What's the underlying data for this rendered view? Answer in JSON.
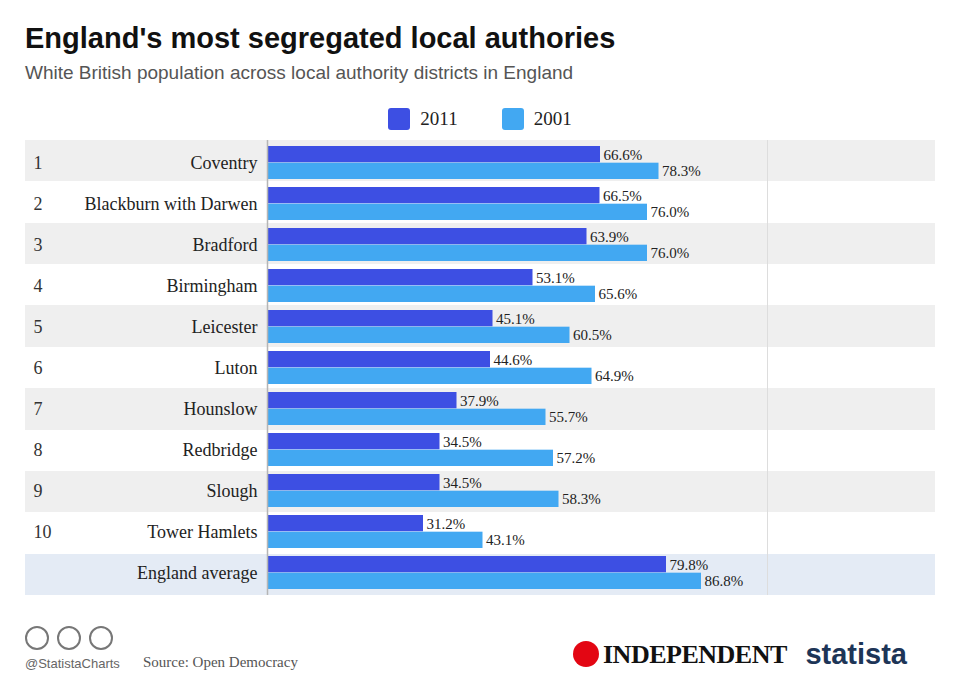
{
  "chart_data": {
    "type": "bar",
    "title": "England's most segregated local authories",
    "subtitle": "White British population across local authority districts in England",
    "orientation": "horizontal",
    "data_labels": true,
    "tick_labels": "y",
    "grid": false,
    "legend": "top",
    "categories": [
      "Coventry",
      "Blackburn with Darwen",
      "Bradford",
      "Birmingham",
      "Leicester",
      "Luton",
      "Hounslow",
      "Redbridge",
      "Slough",
      "Tower Hamlets",
      "England average"
    ],
    "ranks": [
      1,
      2,
      3,
      4,
      5,
      6,
      7,
      8,
      9,
      10,
      null
    ],
    "xlim": [
      0,
      100
    ],
    "series": [
      {
        "name": "2011",
        "color": "#3d4fe3",
        "values": [
          66.6,
          66.5,
          63.9,
          53.1,
          45.1,
          44.6,
          37.9,
          34.5,
          34.5,
          31.2,
          79.8
        ],
        "value_labels": [
          "66.6%",
          "66.5%",
          "63.9%",
          "53.1%",
          "45.1%",
          "44.6%",
          "37.9%",
          "34.5%",
          "34.5%",
          "31.2%",
          "79.8%"
        ]
      },
      {
        "name": "2001",
        "color": "#42a8f2",
        "values": [
          78.3,
          76.0,
          76.0,
          65.6,
          60.5,
          64.9,
          55.7,
          57.2,
          58.3,
          43.1,
          86.8
        ],
        "value_labels": [
          "78.3%",
          "76.0%",
          "76.0%",
          "65.6%",
          "60.5%",
          "64.9%",
          "55.7%",
          "57.2%",
          "58.3%",
          "43.1%",
          "86.8%"
        ]
      }
    ],
    "credit": "@StatistaCharts",
    "source": "Source: Open Democracy",
    "logos": [
      "INDEPENDENT",
      "statista"
    ]
  }
}
